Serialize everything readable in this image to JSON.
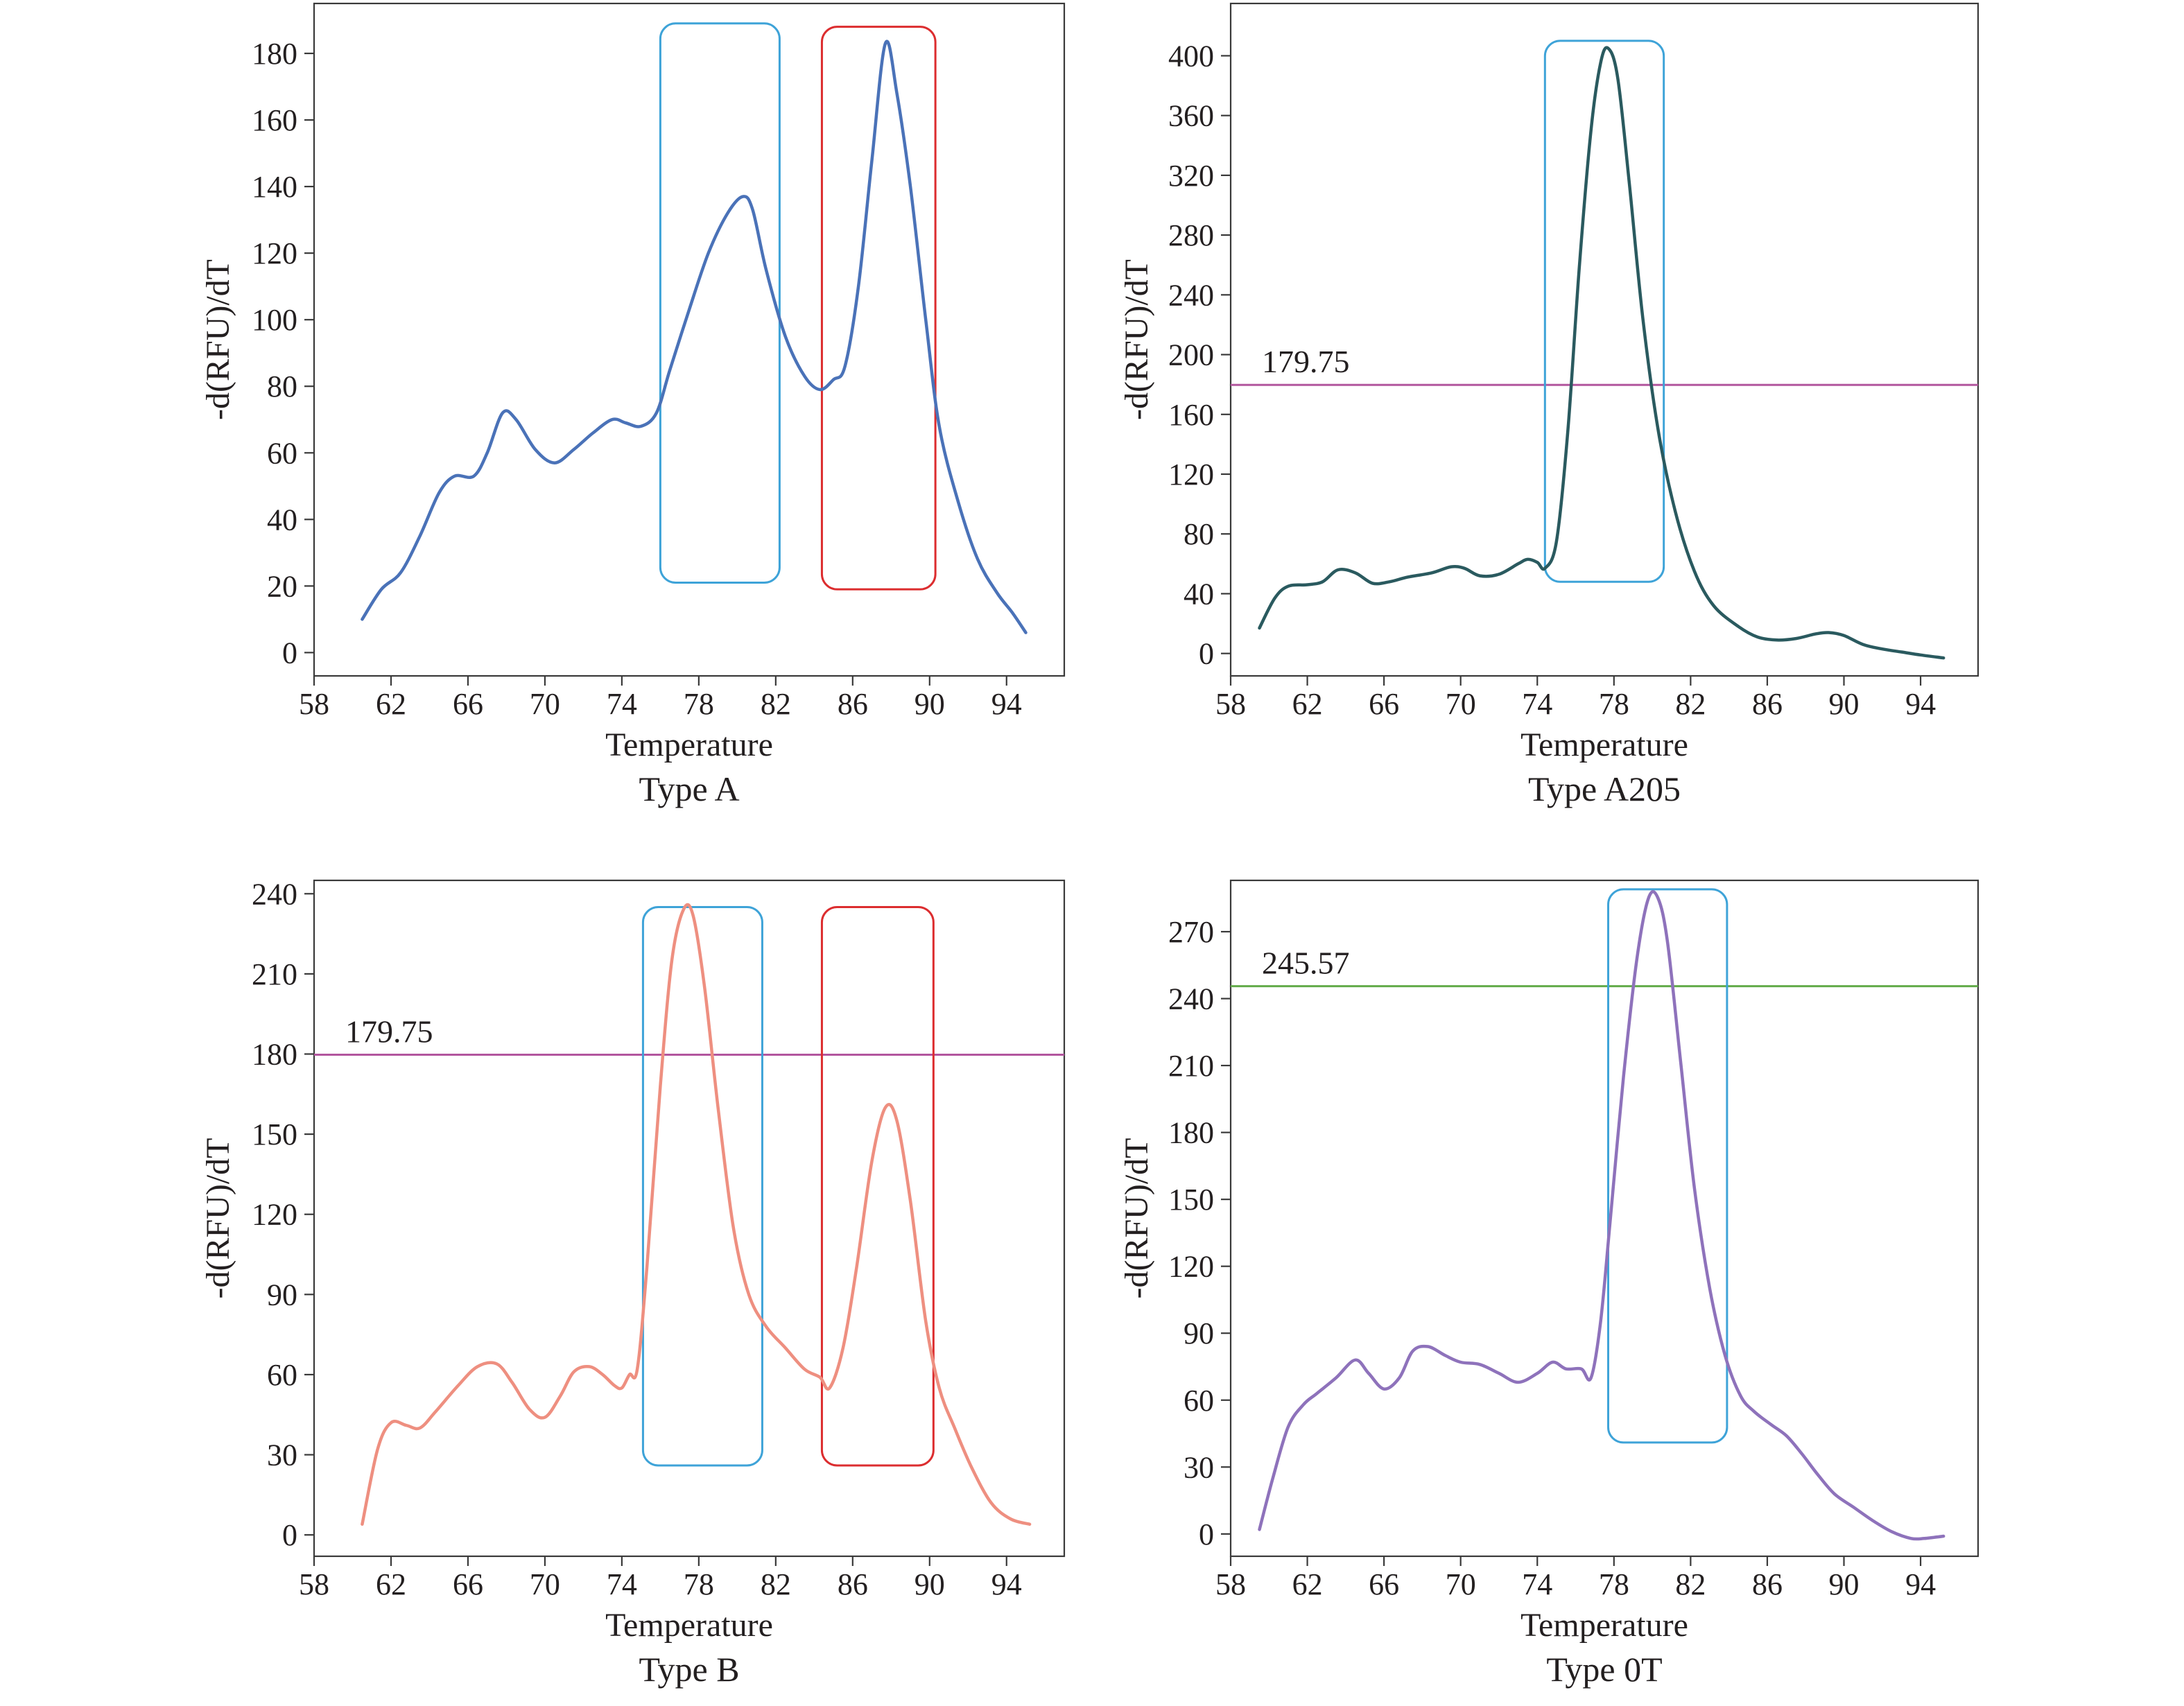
{
  "chart_data": [
    {
      "type": "line",
      "caption": "Type A",
      "xlabel": "Temperature",
      "ylabel": "-d(RFU)/dT",
      "xlim": [
        58,
        97
      ],
      "ylim": [
        -7,
        195
      ],
      "xticks": [
        58,
        62,
        66,
        70,
        74,
        78,
        82,
        86,
        90,
        94
      ],
      "yticks": [
        0,
        20,
        40,
        60,
        80,
        100,
        120,
        140,
        160,
        180
      ],
      "series_color": "#4a72b8",
      "x": [
        60.5,
        61.5,
        62.5,
        63.5,
        64.5,
        65.3,
        66.3,
        67,
        67.8,
        68.5,
        69.5,
        70.5,
        71.5,
        72.5,
        73.5,
        74.2,
        75,
        75.8,
        76.5,
        77.5,
        78.5,
        79.5,
        80.3,
        80.8,
        81.5,
        82.5,
        83.5,
        84.3,
        85,
        85.6,
        86.3,
        87,
        87.7,
        88.3,
        89,
        89.8,
        90.5,
        91.5,
        92.5,
        93.5,
        94.3,
        95
      ],
      "y": [
        10,
        19,
        24,
        35,
        48,
        53,
        53,
        60,
        72,
        70,
        61,
        57,
        61,
        66,
        70,
        69,
        68,
        72,
        85,
        103,
        120,
        132,
        137,
        133,
        115,
        95,
        83,
        79,
        82,
        86,
        110,
        148,
        183,
        168,
        140,
        100,
        68,
        45,
        28,
        18,
        12,
        6
      ],
      "threshold": null,
      "boxes": [
        {
          "color": "#3ea3d8",
          "x_from": 76,
          "x_to": 82.2,
          "y_from": 21,
          "y_to": 189
        },
        {
          "color": "#dc2d2f",
          "x_from": 84.4,
          "x_to": 90.3,
          "y_from": 19,
          "y_to": 188
        }
      ]
    },
    {
      "type": "line",
      "caption": "Type A205",
      "xlabel": "Temperature",
      "ylabel": "-d(RFU)/dT",
      "xlim": [
        58,
        97
      ],
      "ylim": [
        -15,
        435
      ],
      "xticks": [
        58,
        62,
        66,
        70,
        74,
        78,
        82,
        86,
        90,
        94
      ],
      "yticks": [
        0,
        40,
        80,
        120,
        160,
        200,
        240,
        280,
        320,
        360,
        400
      ],
      "series_color": "#2a5a5f",
      "x": [
        59.5,
        60.3,
        61,
        62,
        62.8,
        63.6,
        64.5,
        65.4,
        66.3,
        67.2,
        68.5,
        69.5,
        70.2,
        71,
        72,
        73,
        73.5,
        74,
        74.4,
        75,
        75.6,
        76.2,
        76.8,
        77.3,
        77.7,
        78.2,
        78.8,
        79.5,
        80.3,
        81.2,
        82.2,
        83.2,
        84.5,
        85.5,
        86.5,
        87.5,
        88.5,
        89.2,
        90,
        91,
        92,
        93,
        94,
        95.2
      ],
      "y": [
        17,
        37,
        45,
        46,
        48,
        56,
        54,
        47,
        48,
        51,
        54,
        58,
        57,
        52,
        53,
        60,
        63,
        61,
        57,
        75,
        150,
        260,
        350,
        395,
        405,
        385,
        315,
        225,
        150,
        95,
        55,
        32,
        18,
        11,
        9,
        10,
        13,
        14,
        12,
        6,
        3,
        1,
        -1,
        -3
      ],
      "threshold": {
        "value": 179.75,
        "label": "179.75",
        "color": "#b2569e"
      },
      "boxes": [
        {
          "color": "#3ea3d8",
          "x_from": 74.4,
          "x_to": 80.6,
          "y_from": 48,
          "y_to": 410
        }
      ]
    },
    {
      "type": "line",
      "caption": "Type B",
      "xlabel": "Temperature",
      "ylabel": "-d(RFU)/dT",
      "xlim": [
        58,
        97
      ],
      "ylim": [
        -8,
        245
      ],
      "xticks": [
        58,
        62,
        66,
        70,
        74,
        78,
        82,
        86,
        90,
        94
      ],
      "yticks": [
        0,
        30,
        60,
        90,
        120,
        150,
        180,
        210,
        240
      ],
      "series_color": "#ee8f80",
      "x": [
        60.5,
        61.3,
        62,
        62.8,
        63.5,
        64.3,
        65.5,
        66.5,
        67.5,
        68.3,
        69.2,
        70,
        70.8,
        71.5,
        72.3,
        73,
        73.6,
        74,
        74.4,
        74.8,
        75.3,
        76,
        76.6,
        77.2,
        77.7,
        78.3,
        79,
        79.8,
        80.6,
        81.5,
        82.5,
        83.5,
        84.3,
        84.8,
        85.5,
        86.2,
        87,
        87.7,
        88.3,
        89,
        89.8,
        90.5,
        91.3,
        92.2,
        93.2,
        94.2,
        95.2
      ],
      "y": [
        4,
        32,
        42,
        41,
        40,
        46,
        56,
        63,
        64,
        57,
        47,
        44,
        52,
        61,
        63,
        60,
        56,
        55,
        60,
        62,
        100,
        168,
        215,
        234,
        232,
        205,
        160,
        115,
        90,
        78,
        70,
        62,
        59,
        55,
        70,
        100,
        140,
        160,
        155,
        125,
        80,
        55,
        40,
        25,
        12,
        6,
        4
      ],
      "threshold": {
        "value": 179.75,
        "label": "179.75",
        "color": "#b2569e"
      },
      "boxes": [
        {
          "color": "#3ea3d8",
          "x_from": 75.1,
          "x_to": 81.3,
          "y_from": 26,
          "y_to": 235
        },
        {
          "color": "#dc2d2f",
          "x_from": 84.4,
          "x_to": 90.2,
          "y_from": 26,
          "y_to": 235
        }
      ]
    },
    {
      "type": "line",
      "caption": "Type 0T",
      "xlabel": "Temperature",
      "ylabel": "-d(RFU)/dT",
      "xlim": [
        58,
        97
      ],
      "ylim": [
        -10,
        293
      ],
      "xticks": [
        58,
        62,
        66,
        70,
        74,
        78,
        82,
        86,
        90,
        94
      ],
      "yticks": [
        0,
        30,
        60,
        90,
        120,
        150,
        180,
        210,
        240,
        270
      ],
      "series_color": "#8e72bb",
      "x": [
        59.5,
        60.2,
        61,
        61.8,
        62.5,
        63.5,
        64.5,
        65.2,
        66,
        66.8,
        67.5,
        68.3,
        69.2,
        70,
        71,
        72,
        73,
        74,
        74.8,
        75.5,
        76.3,
        76.8,
        77.3,
        77.8,
        78.5,
        79.2,
        79.8,
        80.3,
        80.8,
        81.5,
        82.2,
        83,
        83.8,
        84.6,
        85.3,
        86.2,
        87,
        87.8,
        88.6,
        89.5,
        90.5,
        91.5,
        92.5,
        93.5,
        94.2,
        95.2
      ],
      "y": [
        2,
        25,
        48,
        58,
        63,
        70,
        78,
        72,
        65,
        70,
        82,
        84,
        80,
        77,
        76,
        72,
        68,
        72,
        77,
        74,
        74,
        70,
        95,
        140,
        205,
        258,
        285,
        285,
        265,
        210,
        155,
        110,
        80,
        62,
        55,
        49,
        44,
        36,
        27,
        18,
        12,
        6,
        1,
        -2,
        -2,
        -1
      ],
      "threshold": {
        "value": 245.57,
        "label": "245.57",
        "color": "#62ab4a"
      },
      "boxes": [
        {
          "color": "#3ea3d8",
          "x_from": 77.7,
          "x_to": 83.9,
          "y_from": 41,
          "y_to": 289
        }
      ]
    }
  ]
}
